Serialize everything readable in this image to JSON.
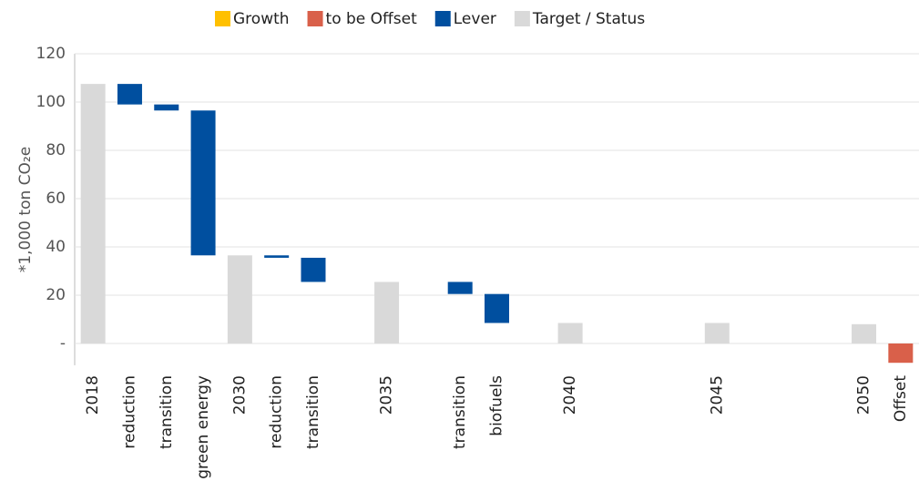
{
  "chart_data": {
    "type": "waterfall",
    "y_label": "*1,000 ton CO₂e",
    "categories": [
      "2018",
      "reduction",
      "transition",
      "green energy",
      "2030",
      "reduction",
      "transition",
      null,
      "2035",
      null,
      "transition",
      "biofuels",
      null,
      "2040",
      null,
      null,
      null,
      "2045",
      null,
      null,
      null,
      "2050",
      "Offset"
    ],
    "series": [
      {
        "name": "Growth",
        "color": "#ffc000",
        "values": [
          null,
          null,
          null,
          null,
          null,
          null,
          null,
          null,
          null,
          null,
          null,
          null,
          null,
          null,
          null,
          null,
          null,
          null,
          null,
          null,
          null,
          null,
          null
        ]
      },
      {
        "name": "to be Offset",
        "color": "#d9604a",
        "values": [
          null,
          null,
          null,
          null,
          null,
          null,
          null,
          null,
          null,
          null,
          null,
          null,
          null,
          null,
          null,
          null,
          null,
          null,
          null,
          null,
          null,
          null,
          -8
        ]
      },
      {
        "name": "Lever",
        "color": "#004f9f",
        "values": [
          null,
          -8.5,
          -2.5,
          -60,
          null,
          -1,
          -10,
          null,
          null,
          null,
          -5,
          -12,
          null,
          null,
          null,
          null,
          null,
          null,
          null,
          null,
          null,
          null,
          null
        ]
      },
      {
        "name": "Target / Status",
        "color": "#d9d9d9",
        "values": [
          107.5,
          null,
          null,
          null,
          36.5,
          null,
          null,
          null,
          25.5,
          null,
          null,
          null,
          null,
          8.5,
          null,
          null,
          null,
          8.5,
          null,
          null,
          null,
          8,
          null
        ]
      }
    ],
    "ylim": [
      -9,
      120
    ],
    "yticks": [
      {
        "value": 0,
        "label": "-"
      },
      20,
      40,
      60,
      80,
      100,
      120
    ],
    "grid": true
  }
}
